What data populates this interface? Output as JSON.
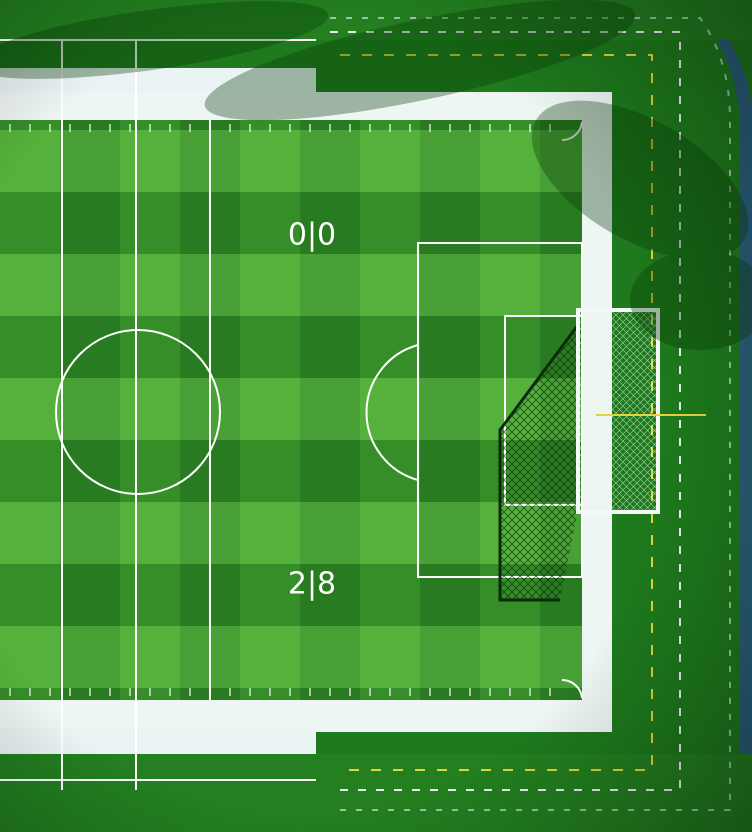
{
  "pitch_markings": {
    "top": "0|0",
    "bottom": "2|8"
  }
}
